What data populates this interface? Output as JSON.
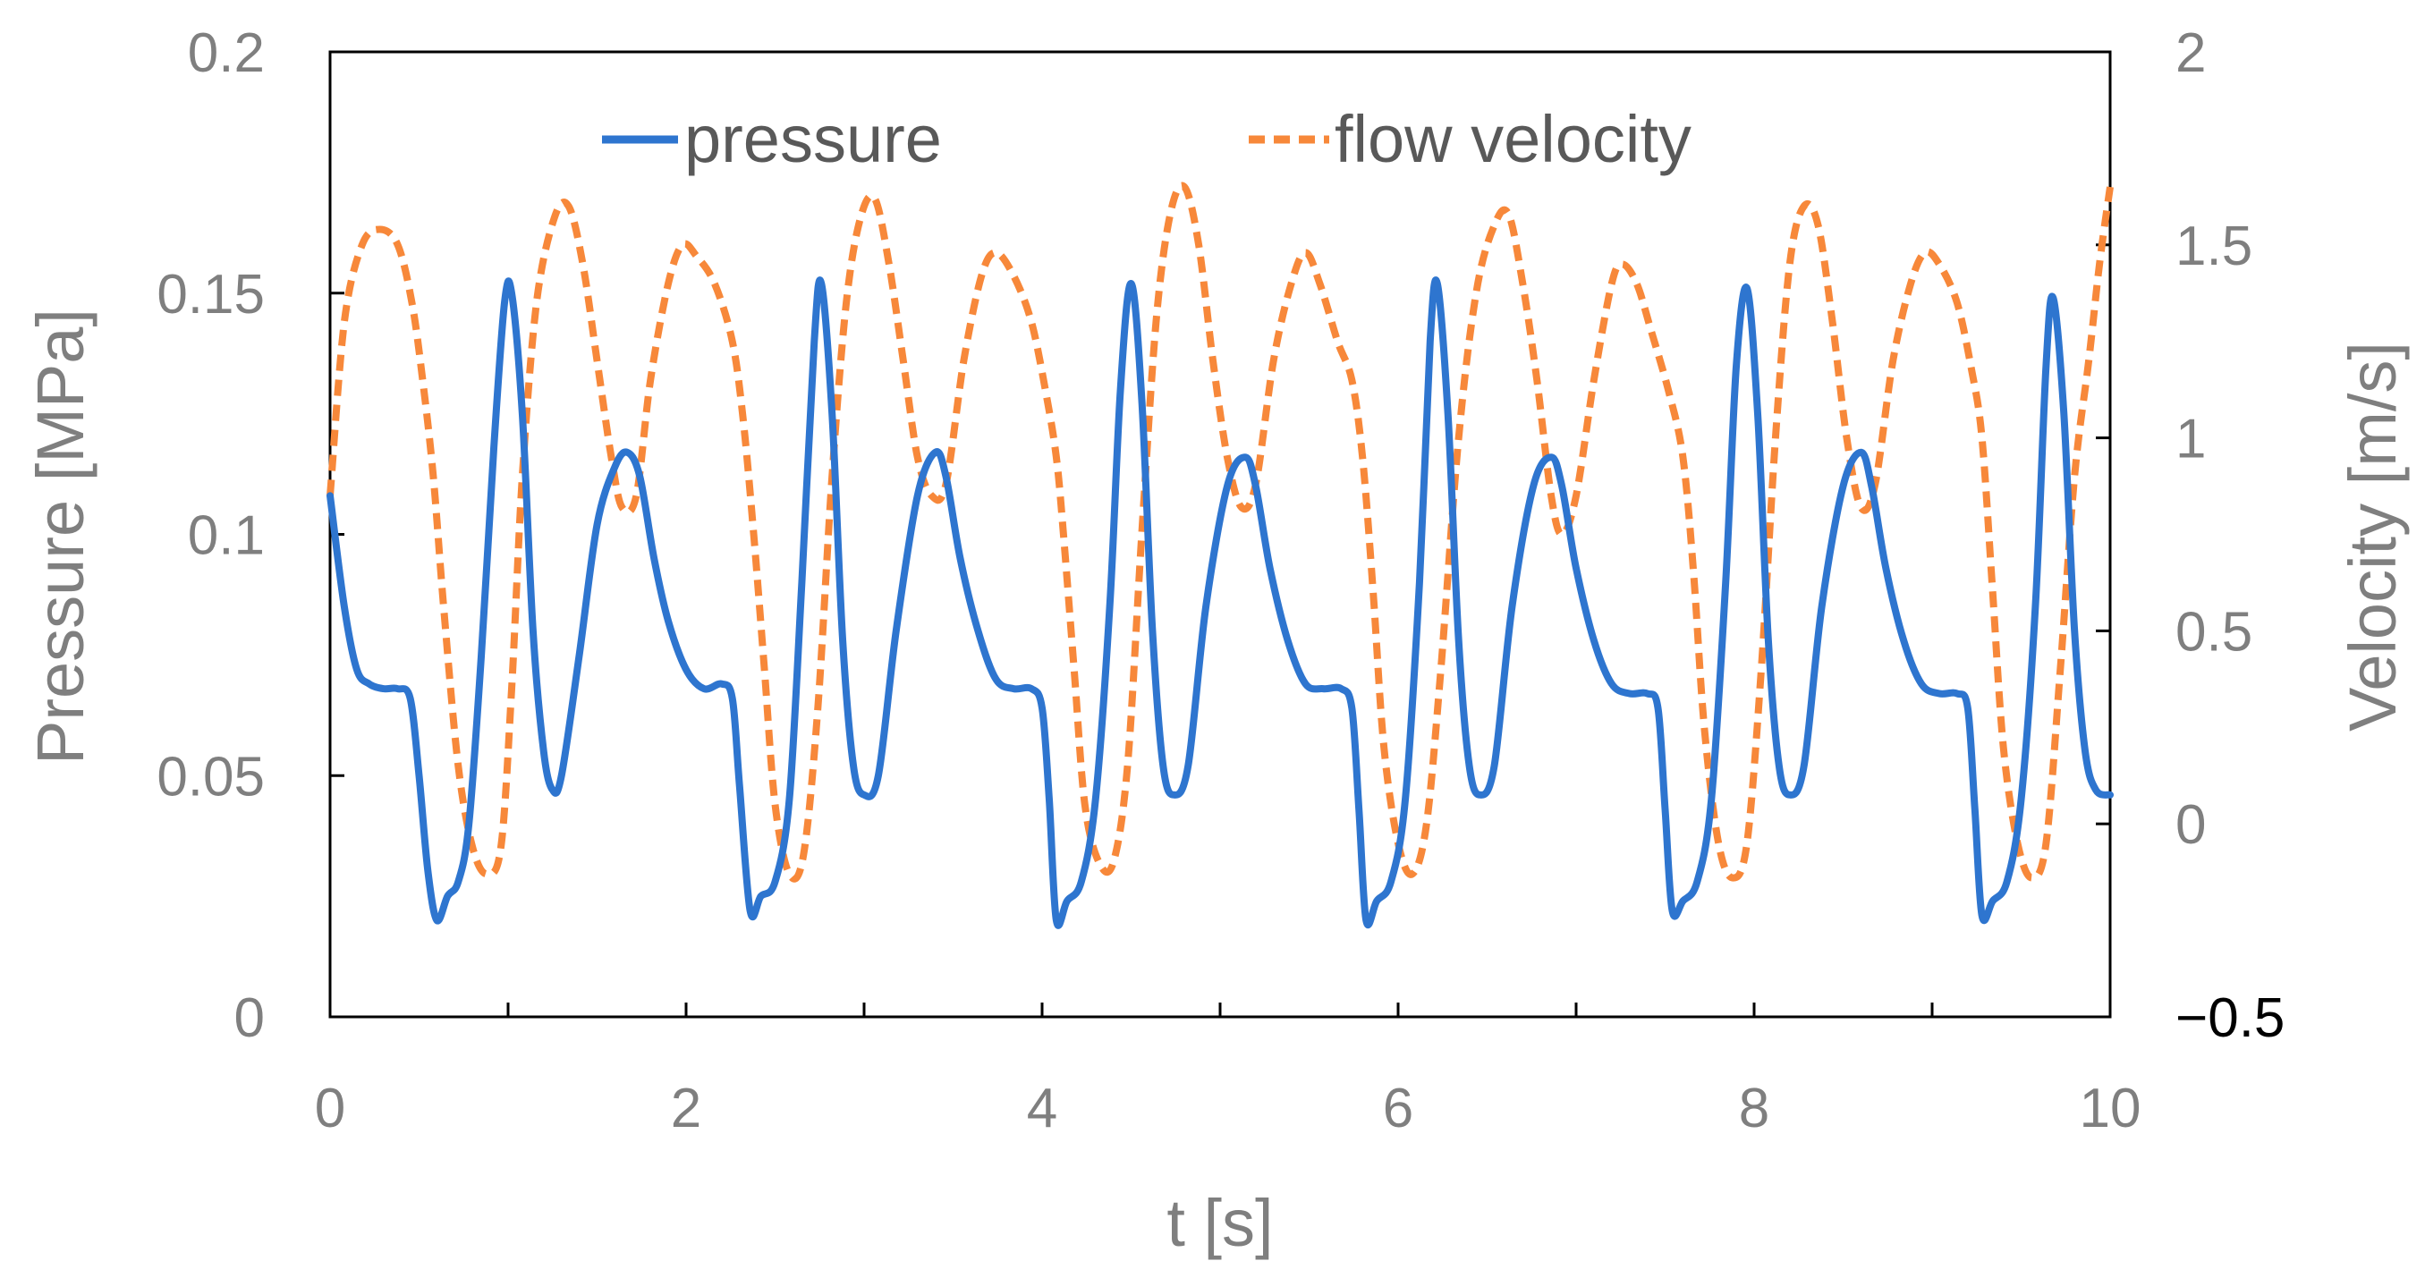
{
  "chart_data": {
    "type": "line",
    "title": "",
    "xlabel": "t [s]",
    "ylabel": "Pressure [MPa]",
    "y2label": "Velocity [m/s]",
    "xlim": [
      0,
      10
    ],
    "ylim": [
      0,
      0.2
    ],
    "y2lim": [
      -0.5,
      2
    ],
    "x_ticks": [
      "0",
      "2",
      "4",
      "6",
      "8",
      "10"
    ],
    "y_ticks": [
      "0",
      "0.05",
      "0.1",
      "0.15",
      "0.2"
    ],
    "y2_ticks": [
      "−0.5",
      "0",
      "0.5",
      "1",
      "1.5",
      "2"
    ],
    "legend_position": "top-center",
    "grid": false,
    "series": [
      {
        "name": "pressure",
        "axis": "left",
        "color": "#2e75cf",
        "style": "solid",
        "points": [
          [
            0.0,
            0.108
          ],
          [
            0.08,
            0.085
          ],
          [
            0.15,
            0.072
          ],
          [
            0.22,
            0.069
          ],
          [
            0.3,
            0.068
          ],
          [
            0.38,
            0.068
          ],
          [
            0.45,
            0.066
          ],
          [
            0.5,
            0.05
          ],
          [
            0.55,
            0.03
          ],
          [
            0.6,
            0.02
          ],
          [
            0.66,
            0.025
          ],
          [
            0.72,
            0.028
          ],
          [
            0.78,
            0.04
          ],
          [
            0.85,
            0.075
          ],
          [
            0.92,
            0.118
          ],
          [
            0.98,
            0.148
          ],
          [
            1.02,
            0.15
          ],
          [
            1.08,
            0.125
          ],
          [
            1.14,
            0.08
          ],
          [
            1.2,
            0.055
          ],
          [
            1.25,
            0.047
          ],
          [
            1.3,
            0.05
          ],
          [
            1.4,
            0.075
          ],
          [
            1.5,
            0.102
          ],
          [
            1.6,
            0.114
          ],
          [
            1.67,
            0.117
          ],
          [
            1.74,
            0.112
          ],
          [
            1.82,
            0.095
          ],
          [
            1.9,
            0.082
          ],
          [
            2.0,
            0.072
          ],
          [
            2.1,
            0.068
          ],
          [
            2.2,
            0.069
          ],
          [
            2.26,
            0.066
          ],
          [
            2.3,
            0.048
          ],
          [
            2.36,
            0.022
          ],
          [
            2.42,
            0.025
          ],
          [
            2.5,
            0.028
          ],
          [
            2.58,
            0.045
          ],
          [
            2.65,
            0.09
          ],
          [
            2.72,
            0.14
          ],
          [
            2.76,
            0.152
          ],
          [
            2.82,
            0.125
          ],
          [
            2.88,
            0.078
          ],
          [
            2.94,
            0.052
          ],
          [
            3.0,
            0.046
          ],
          [
            3.08,
            0.05
          ],
          [
            3.18,
            0.08
          ],
          [
            3.3,
            0.108
          ],
          [
            3.4,
            0.117
          ],
          [
            3.46,
            0.112
          ],
          [
            3.54,
            0.095
          ],
          [
            3.64,
            0.08
          ],
          [
            3.74,
            0.07
          ],
          [
            3.84,
            0.068
          ],
          [
            3.94,
            0.068
          ],
          [
            4.0,
            0.064
          ],
          [
            4.04,
            0.045
          ],
          [
            4.08,
            0.02
          ],
          [
            4.14,
            0.024
          ],
          [
            4.22,
            0.028
          ],
          [
            4.3,
            0.045
          ],
          [
            4.38,
            0.085
          ],
          [
            4.44,
            0.13
          ],
          [
            4.5,
            0.152
          ],
          [
            4.56,
            0.128
          ],
          [
            4.62,
            0.08
          ],
          [
            4.68,
            0.052
          ],
          [
            4.74,
            0.046
          ],
          [
            4.82,
            0.052
          ],
          [
            4.92,
            0.085
          ],
          [
            5.04,
            0.11
          ],
          [
            5.14,
            0.116
          ],
          [
            5.2,
            0.11
          ],
          [
            5.28,
            0.093
          ],
          [
            5.38,
            0.078
          ],
          [
            5.48,
            0.069
          ],
          [
            5.58,
            0.068
          ],
          [
            5.68,
            0.068
          ],
          [
            5.74,
            0.064
          ],
          [
            5.78,
            0.043
          ],
          [
            5.82,
            0.02
          ],
          [
            5.88,
            0.024
          ],
          [
            5.96,
            0.028
          ],
          [
            6.04,
            0.045
          ],
          [
            6.12,
            0.09
          ],
          [
            6.18,
            0.14
          ],
          [
            6.22,
            0.152
          ],
          [
            6.28,
            0.125
          ],
          [
            6.34,
            0.078
          ],
          [
            6.4,
            0.052
          ],
          [
            6.46,
            0.046
          ],
          [
            6.54,
            0.052
          ],
          [
            6.64,
            0.085
          ],
          [
            6.76,
            0.11
          ],
          [
            6.86,
            0.116
          ],
          [
            6.92,
            0.11
          ],
          [
            7.0,
            0.093
          ],
          [
            7.1,
            0.078
          ],
          [
            7.2,
            0.069
          ],
          [
            7.3,
            0.067
          ],
          [
            7.4,
            0.067
          ],
          [
            7.46,
            0.064
          ],
          [
            7.5,
            0.043
          ],
          [
            7.54,
            0.022
          ],
          [
            7.6,
            0.024
          ],
          [
            7.68,
            0.028
          ],
          [
            7.76,
            0.045
          ],
          [
            7.84,
            0.09
          ],
          [
            7.9,
            0.135
          ],
          [
            7.96,
            0.151
          ],
          [
            8.02,
            0.125
          ],
          [
            8.08,
            0.078
          ],
          [
            8.14,
            0.052
          ],
          [
            8.2,
            0.046
          ],
          [
            8.28,
            0.052
          ],
          [
            8.38,
            0.085
          ],
          [
            8.5,
            0.11
          ],
          [
            8.6,
            0.117
          ],
          [
            8.66,
            0.11
          ],
          [
            8.74,
            0.093
          ],
          [
            8.84,
            0.078
          ],
          [
            8.94,
            0.069
          ],
          [
            9.04,
            0.067
          ],
          [
            9.14,
            0.067
          ],
          [
            9.2,
            0.064
          ],
          [
            9.24,
            0.043
          ],
          [
            9.28,
            0.021
          ],
          [
            9.34,
            0.024
          ],
          [
            9.42,
            0.028
          ],
          [
            9.5,
            0.045
          ],
          [
            9.58,
            0.085
          ],
          [
            9.64,
            0.135
          ],
          [
            9.68,
            0.149
          ],
          [
            9.74,
            0.125
          ],
          [
            9.8,
            0.08
          ],
          [
            9.86,
            0.055
          ],
          [
            9.92,
            0.047
          ],
          [
            10.0,
            0.046
          ]
        ]
      },
      {
        "name": "flow velocity",
        "axis": "right",
        "color": "#f7883a",
        "style": "dashed",
        "points": [
          [
            0.0,
            0.85
          ],
          [
            0.08,
            1.3
          ],
          [
            0.18,
            1.5
          ],
          [
            0.28,
            1.54
          ],
          [
            0.38,
            1.5
          ],
          [
            0.46,
            1.35
          ],
          [
            0.52,
            1.15
          ],
          [
            0.58,
            0.9
          ],
          [
            0.64,
            0.55
          ],
          [
            0.72,
            0.15
          ],
          [
            0.8,
            -0.06
          ],
          [
            0.88,
            -0.13
          ],
          [
            0.96,
            -0.06
          ],
          [
            1.02,
            0.35
          ],
          [
            1.08,
            0.9
          ],
          [
            1.16,
            1.35
          ],
          [
            1.26,
            1.57
          ],
          [
            1.34,
            1.6
          ],
          [
            1.42,
            1.45
          ],
          [
            1.5,
            1.2
          ],
          [
            1.58,
            0.95
          ],
          [
            1.64,
            0.82
          ],
          [
            1.72,
            0.85
          ],
          [
            1.8,
            1.15
          ],
          [
            1.9,
            1.4
          ],
          [
            1.98,
            1.5
          ],
          [
            2.06,
            1.47
          ],
          [
            2.16,
            1.4
          ],
          [
            2.26,
            1.25
          ],
          [
            2.32,
            1.05
          ],
          [
            2.38,
            0.75
          ],
          [
            2.44,
            0.4
          ],
          [
            2.5,
            0.05
          ],
          [
            2.58,
            -0.13
          ],
          [
            2.66,
            -0.08
          ],
          [
            2.74,
            0.3
          ],
          [
            2.82,
            0.9
          ],
          [
            2.9,
            1.35
          ],
          [
            2.98,
            1.57
          ],
          [
            3.06,
            1.62
          ],
          [
            3.14,
            1.45
          ],
          [
            3.22,
            1.2
          ],
          [
            3.3,
            0.95
          ],
          [
            3.38,
            0.85
          ],
          [
            3.46,
            0.88
          ],
          [
            3.56,
            1.2
          ],
          [
            3.66,
            1.42
          ],
          [
            3.74,
            1.48
          ],
          [
            3.84,
            1.42
          ],
          [
            3.94,
            1.3
          ],
          [
            4.02,
            1.12
          ],
          [
            4.08,
            0.95
          ],
          [
            4.12,
            0.75
          ],
          [
            4.18,
            0.4
          ],
          [
            4.24,
            0.05
          ],
          [
            4.32,
            -0.1
          ],
          [
            4.4,
            -0.1
          ],
          [
            4.48,
            0.15
          ],
          [
            4.56,
            0.75
          ],
          [
            4.64,
            1.3
          ],
          [
            4.72,
            1.58
          ],
          [
            4.8,
            1.65
          ],
          [
            4.88,
            1.5
          ],
          [
            4.96,
            1.2
          ],
          [
            5.04,
            0.95
          ],
          [
            5.12,
            0.82
          ],
          [
            5.2,
            0.88
          ],
          [
            5.3,
            1.2
          ],
          [
            5.4,
            1.4
          ],
          [
            5.48,
            1.48
          ],
          [
            5.56,
            1.4
          ],
          [
            5.66,
            1.25
          ],
          [
            5.74,
            1.15
          ],
          [
            5.8,
            0.95
          ],
          [
            5.86,
            0.6
          ],
          [
            5.92,
            0.2
          ],
          [
            6.0,
            -0.05
          ],
          [
            6.08,
            -0.13
          ],
          [
            6.16,
            0.0
          ],
          [
            6.24,
            0.4
          ],
          [
            6.34,
            1.0
          ],
          [
            6.44,
            1.38
          ],
          [
            6.54,
            1.55
          ],
          [
            6.62,
            1.58
          ],
          [
            6.7,
            1.4
          ],
          [
            6.78,
            1.15
          ],
          [
            6.86,
            0.85
          ],
          [
            6.92,
            0.75
          ],
          [
            7.0,
            0.85
          ],
          [
            7.1,
            1.15
          ],
          [
            7.2,
            1.4
          ],
          [
            7.26,
            1.45
          ],
          [
            7.34,
            1.4
          ],
          [
            7.42,
            1.28
          ],
          [
            7.52,
            1.12
          ],
          [
            7.6,
            0.95
          ],
          [
            7.66,
            0.65
          ],
          [
            7.72,
            0.25
          ],
          [
            7.8,
            -0.05
          ],
          [
            7.88,
            -0.14
          ],
          [
            7.96,
            -0.05
          ],
          [
            8.04,
            0.4
          ],
          [
            8.12,
            1.0
          ],
          [
            8.2,
            1.45
          ],
          [
            8.28,
            1.6
          ],
          [
            8.36,
            1.55
          ],
          [
            8.44,
            1.3
          ],
          [
            8.52,
            1.0
          ],
          [
            8.6,
            0.82
          ],
          [
            8.68,
            0.88
          ],
          [
            8.78,
            1.2
          ],
          [
            8.88,
            1.4
          ],
          [
            8.96,
            1.48
          ],
          [
            9.04,
            1.45
          ],
          [
            9.14,
            1.35
          ],
          [
            9.22,
            1.18
          ],
          [
            9.28,
            1.0
          ],
          [
            9.34,
            0.6
          ],
          [
            9.4,
            0.2
          ],
          [
            9.48,
            -0.05
          ],
          [
            9.56,
            -0.14
          ],
          [
            9.64,
            -0.05
          ],
          [
            9.72,
            0.4
          ],
          [
            9.8,
            0.9
          ],
          [
            9.88,
            1.2
          ],
          [
            9.94,
            1.45
          ],
          [
            10.0,
            1.65
          ]
        ]
      }
    ]
  }
}
